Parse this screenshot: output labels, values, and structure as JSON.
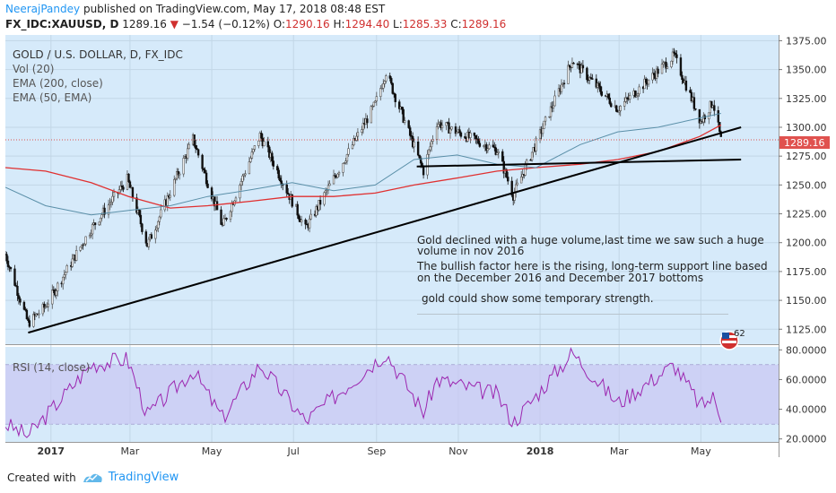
{
  "header": {
    "author": "NeerajPandey",
    "published": "published on TradingView.com, May 17, 2018 08:48 EST",
    "symbol": "FX_IDC:XAUUSD, D",
    "last": "1289.16",
    "change_arrow": "▼",
    "change": "−1.54 (−0.12%)",
    "o_label": "O:",
    "o_val": "1290.16",
    "h_label": "H:",
    "h_val": "1294.40",
    "l_label": "L:",
    "l_val": "1285.33",
    "c_label": "C:",
    "c_val": "1289.16"
  },
  "legend": {
    "title": "GOLD / U.S. DOLLAR, D, FX_IDC",
    "vol": "Vol (20)",
    "ema200": "EMA (200, close)",
    "ema50": "EMA (50, EMA)",
    "rsi": "RSI (14, close)"
  },
  "annotations": {
    "note1_line1": "Gold declined with a huge volume,last time we saw such a huge",
    "note1_line2": "volume in nov 2016",
    "note2_line1": "The bullish factor here is the rising, long-term support line based",
    "note2_line2": "on the December 2016 and December 2017 bottoms",
    "note3": "gold could show some temporary strength.",
    "badge": "62"
  },
  "footer": {
    "created": "Created with",
    "brand": "TradingView"
  },
  "colors": {
    "bg": "#d6eafa",
    "up": "#4a4a4a",
    "down": "#111111",
    "ema200": "#e03030",
    "ema50": "#5a8fa8",
    "rsi": "#9c27b0",
    "rsi_band": "#c9c6f2",
    "price_tag": "#e0524f"
  },
  "chart_data": [
    {
      "type": "line",
      "title": "GOLD / U.S. DOLLAR, D, FX_IDC",
      "x_ticks": [
        "2017",
        "Mar",
        "May",
        "Jul",
        "Sep",
        "Nov",
        "2018",
        "Mar",
        "May"
      ],
      "y_ticks": [
        "1375.00",
        "1350.00",
        "1325.00",
        "1300.00",
        "1275.00",
        "1250.00",
        "1225.00",
        "1200.00",
        "1175.00",
        "1150.00",
        "1125.00"
      ],
      "ylim": [
        1112,
        1380
      ],
      "last_price_label": "1289.16",
      "series": [
        {
          "name": "EMA (200, close)",
          "x": [
            "2016-11-28",
            "2016-12-28",
            "2017-01-31",
            "2017-02-28",
            "2017-03-31",
            "2017-04-28",
            "2017-05-31",
            "2017-06-30",
            "2017-07-31",
            "2017-08-31",
            "2017-09-29",
            "2017-10-31",
            "2017-11-30",
            "2017-12-29",
            "2018-01-31",
            "2018-02-28",
            "2018-03-30",
            "2018-04-30",
            "2018-05-16"
          ],
          "values": [
            1265,
            1262,
            1252,
            1240,
            1230,
            1232,
            1236,
            1240,
            1240,
            1243,
            1250,
            1256,
            1262,
            1265,
            1268,
            1272,
            1279,
            1292,
            1302
          ]
        },
        {
          "name": "EMA (50, EMA)",
          "x": [
            "2016-11-28",
            "2016-12-28",
            "2017-01-31",
            "2017-02-28",
            "2017-03-31",
            "2017-04-28",
            "2017-05-31",
            "2017-06-30",
            "2017-07-31",
            "2017-08-31",
            "2017-09-29",
            "2017-10-31",
            "2017-11-30",
            "2017-12-29",
            "2018-01-31",
            "2018-02-28",
            "2018-03-30",
            "2018-04-30",
            "2018-05-16"
          ],
          "values": [
            1248,
            1232,
            1224,
            1228,
            1232,
            1240,
            1246,
            1252,
            1245,
            1250,
            1272,
            1276,
            1268,
            1265,
            1285,
            1296,
            1300,
            1308,
            1312
          ]
        },
        {
          "name": "Close",
          "x": [
            "2016-11-28",
            "2016-12-15",
            "2016-12-28",
            "2017-01-31",
            "2017-02-27",
            "2017-03-14",
            "2017-04-17",
            "2017-05-09",
            "2017-06-06",
            "2017-07-10",
            "2017-08-31",
            "2017-09-08",
            "2017-10-06",
            "2017-10-16",
            "2017-11-30",
            "2017-12-12",
            "2018-01-25",
            "2018-02-28",
            "2018-04-11",
            "2018-05-01",
            "2018-05-10",
            "2018-05-16"
          ],
          "values": [
            1190,
            1130,
            1145,
            1212,
            1255,
            1198,
            1290,
            1214,
            1293,
            1212,
            1320,
            1348,
            1262,
            1304,
            1280,
            1241,
            1358,
            1316,
            1362,
            1305,
            1322,
            1289
          ]
        }
      ],
      "trendlines": [
        {
          "label": "long-term support",
          "points": [
            [
              "2016-12-15",
              1122
            ],
            [
              "2018-05-31",
              1300
            ]
          ]
        },
        {
          "label": "horizontal support",
          "points": [
            [
              "2017-10-01",
              1266
            ],
            [
              "2018-05-31",
              1272
            ]
          ]
        }
      ]
    },
    {
      "type": "line",
      "title": "RSI (14, close)",
      "y_ticks": [
        "80.0000",
        "60.0000",
        "40.0000",
        "20.0000"
      ],
      "ylim": [
        18,
        82
      ],
      "band": [
        30,
        70
      ],
      "x": [
        "2016-11-28",
        "2016-12-15",
        "2017-01-31",
        "2017-02-27",
        "2017-03-14",
        "2017-04-17",
        "2017-05-09",
        "2017-06-06",
        "2017-07-10",
        "2017-08-31",
        "2017-09-08",
        "2017-10-06",
        "2017-10-16",
        "2017-11-30",
        "2017-12-12",
        "2018-01-25",
        "2018-02-28",
        "2018-04-11",
        "2018-05-01",
        "2018-05-10",
        "2018-05-16"
      ],
      "values": [
        30,
        22,
        70,
        74,
        36,
        66,
        34,
        70,
        32,
        72,
        78,
        38,
        60,
        50,
        31,
        78,
        44,
        70,
        42,
        48,
        36
      ]
    }
  ]
}
